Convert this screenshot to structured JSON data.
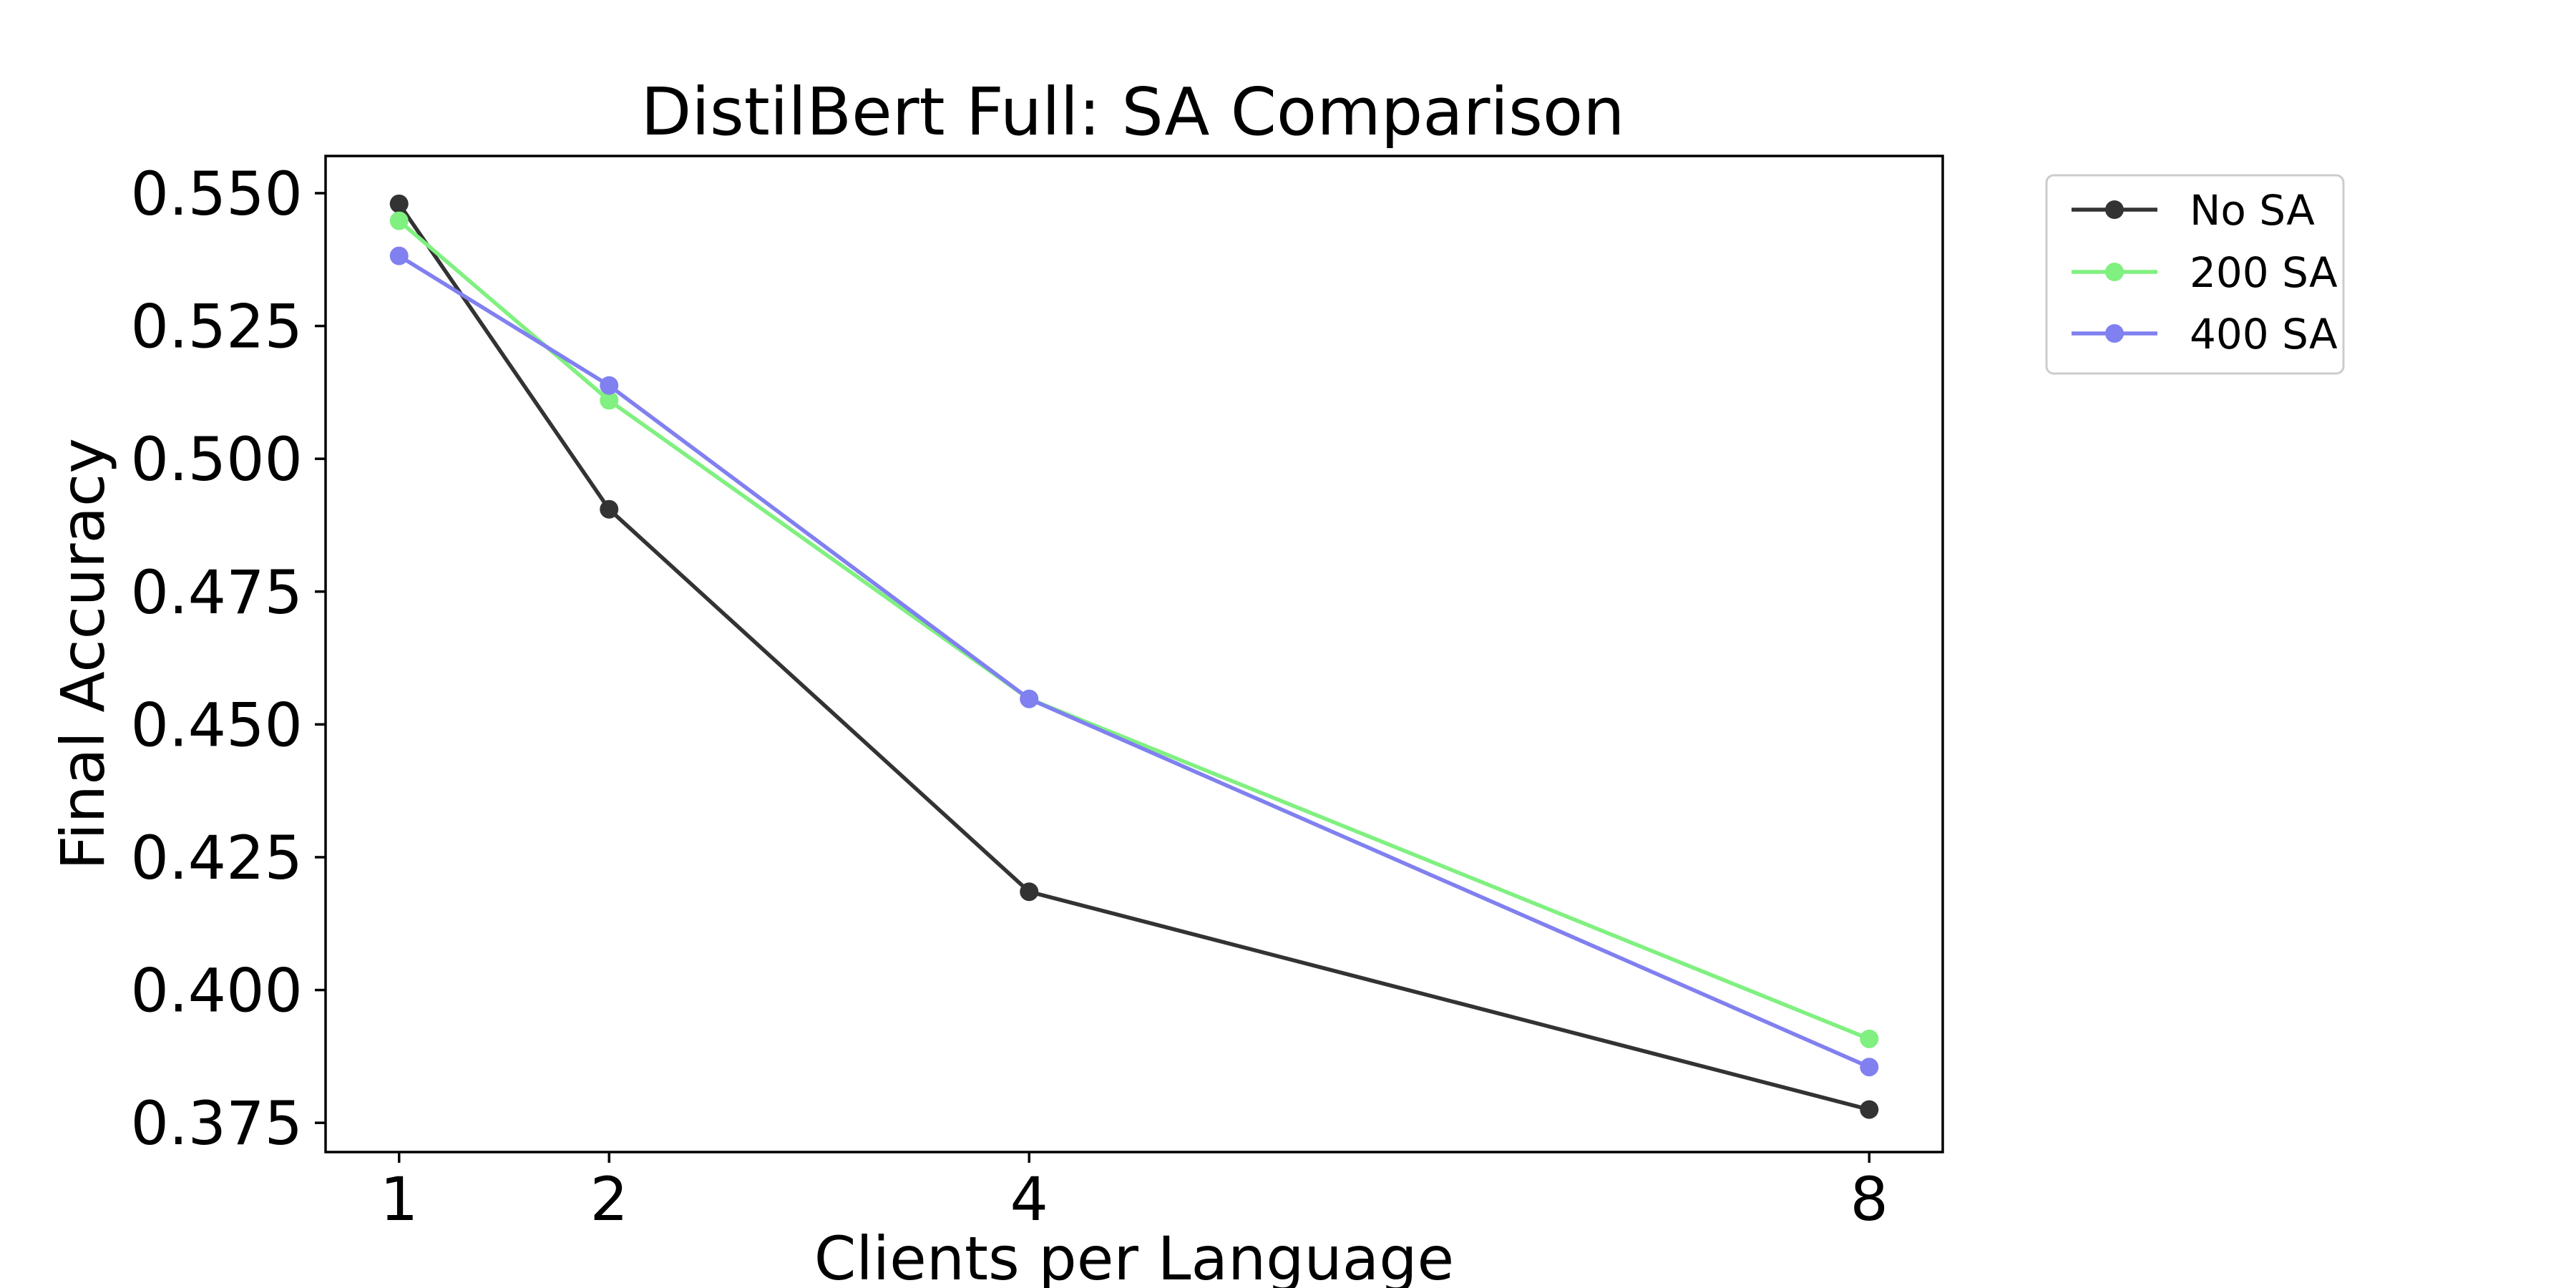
{
  "chart_data": {
    "type": "line",
    "title": "DistilBert Full: SA Comparison",
    "xlabel": "Clients per Language",
    "ylabel": "Final Accuracy",
    "x": [
      1,
      2,
      4,
      8
    ],
    "x_ticks": [
      "1",
      "2",
      "4",
      "8"
    ],
    "y_ticks": [
      "0.375",
      "0.400",
      "0.425",
      "0.450",
      "0.475",
      "0.500",
      "0.525",
      "0.550"
    ],
    "y_tick_values": [
      0.375,
      0.4,
      0.425,
      0.45,
      0.475,
      0.5,
      0.525,
      0.55
    ],
    "xlim": [
      0.65,
      8.35
    ],
    "ylim": [
      0.3695,
      0.557
    ],
    "grid": false,
    "legend_position": "outside-top-right",
    "series": [
      {
        "name": "No SA",
        "color": "#333333",
        "values": [
          0.548,
          0.4905,
          0.4185,
          0.3775
        ]
      },
      {
        "name": "200 SA",
        "color": "#80f080",
        "values": [
          0.5448,
          0.511,
          0.4548,
          0.3908
        ]
      },
      {
        "name": "400 SA",
        "color": "#8080f0",
        "values": [
          0.5382,
          0.5138,
          0.4548,
          0.3855
        ]
      }
    ]
  }
}
